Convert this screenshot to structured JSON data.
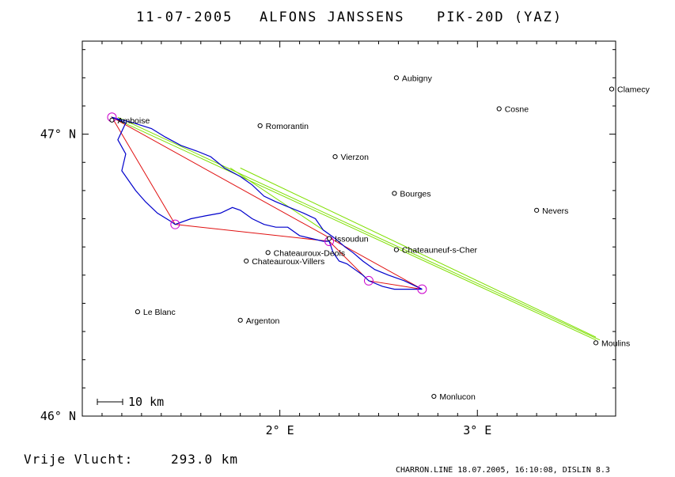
{
  "header": {
    "date": "11-07-2005",
    "pilot": "ALFONS JANSSENS",
    "glider": "PIK-20D (YAZ)"
  },
  "axes": {
    "lon_min": 1.0,
    "lon_max": 3.7,
    "lat_min": 46.0,
    "lat_max": 47.33,
    "x_ticks": [
      {
        "value": 2,
        "label": "2° E"
      },
      {
        "value": 3,
        "label": "3° E"
      }
    ],
    "y_ticks": [
      {
        "value": 46,
        "label": "46° N"
      },
      {
        "value": 47,
        "label": "47° N"
      }
    ]
  },
  "scale_bar": {
    "label": "10 km"
  },
  "towns": [
    {
      "name": "Aubigny",
      "lon": 2.59,
      "lat": 47.2
    },
    {
      "name": "Clamecy",
      "lon": 3.68,
      "lat": 47.16
    },
    {
      "name": "Cosne",
      "lon": 3.11,
      "lat": 47.09
    },
    {
      "name": "Amboise",
      "lon": 1.15,
      "lat": 47.05
    },
    {
      "name": "Romorantin",
      "lon": 1.9,
      "lat": 47.03
    },
    {
      "name": "Vierzon",
      "lon": 2.28,
      "lat": 46.92
    },
    {
      "name": "Bourges",
      "lon": 2.58,
      "lat": 46.79
    },
    {
      "name": "Nevers",
      "lon": 3.3,
      "lat": 46.73
    },
    {
      "name": "Issoudun",
      "lon": 2.25,
      "lat": 46.63
    },
    {
      "name": "Chateauneuf-s-Cher",
      "lon": 2.59,
      "lat": 46.59
    },
    {
      "name": "Chateauroux-Deols",
      "lon": 1.94,
      "lat": 46.58
    },
    {
      "name": "Chateauroux-Villers",
      "lon": 1.83,
      "lat": 46.55
    },
    {
      "name": "Le Blanc",
      "lon": 1.28,
      "lat": 46.37
    },
    {
      "name": "Argenton",
      "lon": 1.8,
      "lat": 46.34
    },
    {
      "name": "Moulins",
      "lon": 3.6,
      "lat": 46.26
    },
    {
      "name": "Monlucon",
      "lon": 2.78,
      "lat": 46.07
    }
  ],
  "task": {
    "turnpoints": [
      {
        "lon": 1.15,
        "lat": 47.06
      },
      {
        "lon": 1.47,
        "lat": 46.68
      },
      {
        "lon": 2.25,
        "lat": 46.62
      },
      {
        "lon": 2.45,
        "lat": 46.48
      },
      {
        "lon": 2.72,
        "lat": 46.45
      }
    ],
    "polygon_color": "#e01010",
    "marker_color": "#cc00cc"
  },
  "declared_lines": {
    "color": "#7fdf00",
    "lines": [
      [
        [
          1.15,
          47.06
        ],
        [
          3.6,
          46.27
        ]
      ],
      [
        [
          1.18,
          47.06
        ],
        [
          3.62,
          46.27
        ]
      ],
      [
        [
          1.75,
          46.88
        ],
        [
          2.22,
          46.66
        ]
      ],
      [
        [
          1.8,
          46.88
        ],
        [
          3.6,
          46.28
        ]
      ]
    ]
  },
  "track": {
    "color": "#0000cc",
    "points": [
      [
        1.15,
        47.06
      ],
      [
        1.22,
        47.04
      ],
      [
        1.18,
        46.98
      ],
      [
        1.22,
        46.93
      ],
      [
        1.2,
        46.87
      ],
      [
        1.27,
        46.8
      ],
      [
        1.32,
        46.76
      ],
      [
        1.38,
        46.72
      ],
      [
        1.45,
        46.69
      ],
      [
        1.47,
        46.68
      ],
      [
        1.55,
        46.7
      ],
      [
        1.62,
        46.71
      ],
      [
        1.7,
        46.72
      ],
      [
        1.76,
        46.74
      ],
      [
        1.8,
        46.73
      ],
      [
        1.86,
        46.7
      ],
      [
        1.92,
        46.68
      ],
      [
        1.98,
        46.67
      ],
      [
        2.04,
        46.67
      ],
      [
        2.1,
        46.64
      ],
      [
        2.16,
        46.63
      ],
      [
        2.22,
        46.62
      ],
      [
        2.25,
        46.62
      ],
      [
        2.27,
        46.58
      ],
      [
        2.3,
        46.55
      ],
      [
        2.34,
        46.54
      ],
      [
        2.38,
        46.52
      ],
      [
        2.42,
        46.5
      ],
      [
        2.45,
        46.48
      ],
      [
        2.52,
        46.46
      ],
      [
        2.58,
        46.45
      ],
      [
        2.64,
        46.45
      ],
      [
        2.72,
        46.45
      ],
      [
        2.63,
        46.48
      ],
      [
        2.55,
        46.5
      ],
      [
        2.48,
        46.52
      ],
      [
        2.42,
        46.55
      ],
      [
        2.37,
        46.58
      ],
      [
        2.33,
        46.6
      ],
      [
        2.28,
        46.63
      ],
      [
        2.22,
        46.66
      ],
      [
        2.18,
        46.7
      ],
      [
        2.12,
        46.72
      ],
      [
        2.05,
        46.74
      ],
      [
        1.98,
        46.76
      ],
      [
        1.92,
        46.78
      ],
      [
        1.86,
        46.82
      ],
      [
        1.8,
        46.85
      ],
      [
        1.72,
        46.88
      ],
      [
        1.65,
        46.92
      ],
      [
        1.58,
        46.94
      ],
      [
        1.5,
        46.96
      ],
      [
        1.42,
        46.99
      ],
      [
        1.35,
        47.02
      ],
      [
        1.26,
        47.04
      ],
      [
        1.15,
        47.06
      ]
    ]
  },
  "footer": {
    "distance_label": "Vrije Vlucht:",
    "distance_value": "293.0 km",
    "source": "CHARRON.LINE 18.07.2005, 16:10:08, DISLIN 8.3"
  }
}
